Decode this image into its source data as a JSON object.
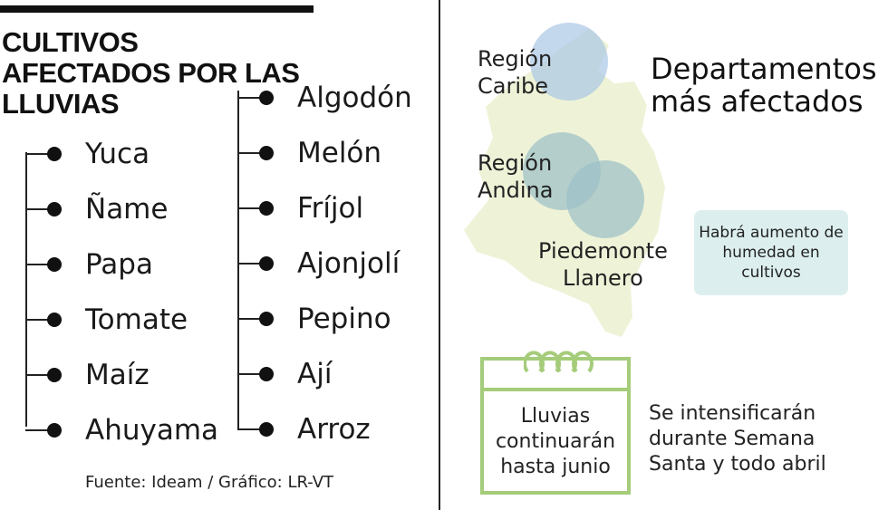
{
  "title": "CULTIVOS AFECTADOS POR LAS LLUVIAS",
  "crops_left": [
    "Yuca",
    "Ñame",
    "Papa",
    "Tomate",
    "Maíz",
    "Ahuyama"
  ],
  "crops_right": [
    "Algodón",
    "Melón",
    "Fríjol",
    "Ajonjolí",
    "Pepino",
    "Ají",
    "Arroz"
  ],
  "source": "Fuente: Ideam / Gráfico: LR-VT",
  "map": {
    "regions": [
      {
        "label_line1": "Región",
        "label_line2": "Caribe"
      },
      {
        "label_line1": "Región",
        "label_line2": "Andina"
      },
      {
        "label_line1": "Piedemonte",
        "label_line2": "Llanero"
      }
    ],
    "heading": "Departamentos más afectados",
    "humidity_note": "Habrá aumento de humedad en cultivos"
  },
  "calendar": {
    "text": "Lluvias continuarán hasta junio"
  },
  "intensify_note": "Se intensificarán durante Semana Santa y todo abril",
  "colors": {
    "map_fill": "#eef3d8",
    "circle_blue": "#a9c6e6",
    "circle_teal": "#9bbfc6",
    "calendar_green": "#a5cc7a",
    "humidity_bg": "#dcefee"
  }
}
